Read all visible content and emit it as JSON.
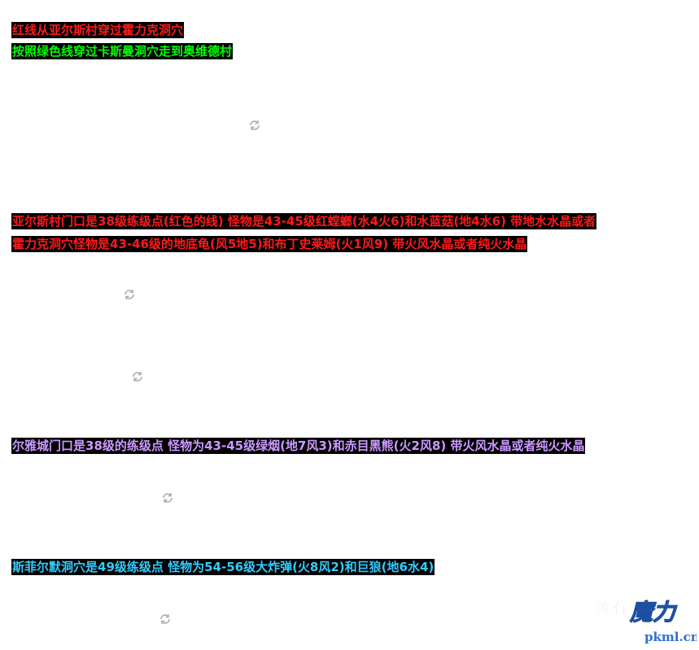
{
  "notes": [
    "红线从亚尔斯村穿过霍力克洞穴",
    "按照绿色线穿过卡斯曼洞穴走到奥维德村"
  ],
  "sections": [
    {
      "lines": [
        "亚尔斯村门口是38级练级点(红色的线)  怪物是43-45级红螳螂(水4火6)和水蓝菇(地4水6)  带地水水晶或者",
        "霍力克洞穴怪物是43-46级的地底龟(风5地5)和布丁史莱姆(火1风9)  带火风水晶或者纯火水晶"
      ]
    },
    {
      "lines": [
        "尔雅城门口是38级的练级点 怪物为43-45级绿烟(地7风3)和赤目黑熊(火2风8)  带火风水晶或者纯火水晶"
      ]
    },
    {
      "lines": [
        "斯菲尔默洞穴是49级练级点 怪物为54-56级大炸弹(火8风2)和巨狼(地6水4)"
      ]
    }
  ],
  "watermark": {
    "brand_a": "唯有",
    "brand_b": "魔力",
    "url": "pkml.cn"
  }
}
